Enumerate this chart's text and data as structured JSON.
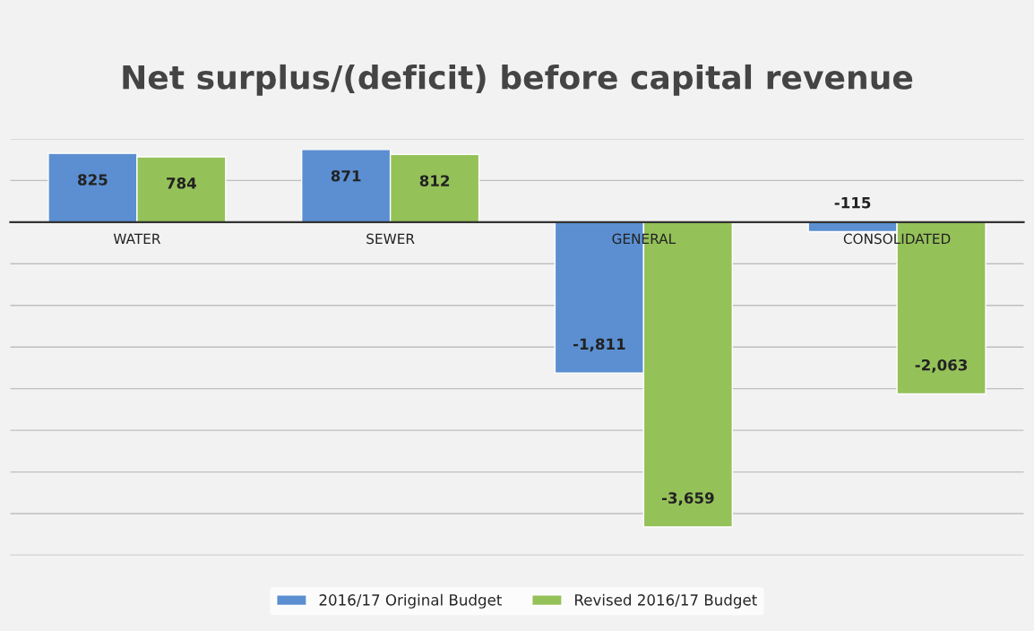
{
  "chart_data": {
    "type": "bar",
    "title": "Net surplus/(deficit) before capital revenue",
    "categories": [
      "WATER",
      "SEWER",
      "GENERAL",
      "CONSOLIDATED"
    ],
    "series": [
      {
        "name": "2016/17 Original Budget",
        "color": "#5b8fd1",
        "values": [
          825,
          871,
          -1811,
          -115
        ],
        "value_labels": [
          "825",
          "871",
          "-1,811",
          "-115"
        ]
      },
      {
        "name": "Revised 2016/17 Budget",
        "color": "#95c159",
        "values": [
          784,
          812,
          -3659,
          -2063
        ],
        "value_labels": [
          "784",
          "812",
          "-3,659",
          "-2,063"
        ]
      }
    ],
    "ylim": [
      -4000,
      1000
    ],
    "yticks": [
      {
        "value": -4000,
        "label": null
      },
      {
        "value": -3500,
        "label": null
      },
      {
        "value": -3000,
        "label": null
      },
      {
        "value": -2500,
        "label": null
      },
      {
        "value": -2000,
        "label": null
      },
      {
        "value": -1500,
        "label": null
      },
      {
        "value": -1000,
        "label": null
      },
      {
        "value": -500,
        "label": null
      },
      {
        "value": 0,
        "label": null
      },
      {
        "value": 500,
        "label": null
      },
      {
        "value": 1000,
        "label": null
      }
    ],
    "tick_labels": "x",
    "grid": "y",
    "legend": "bottom"
  }
}
